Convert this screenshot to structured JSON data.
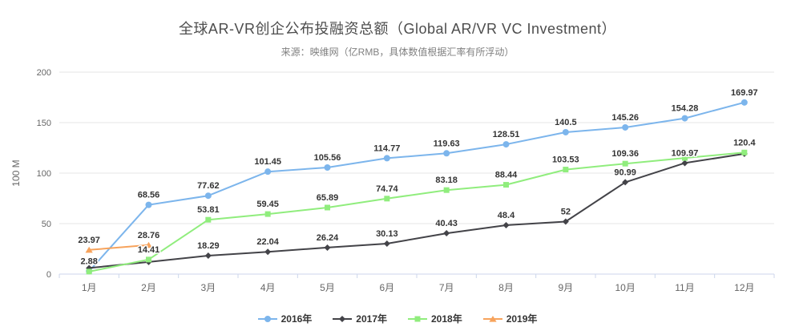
{
  "chart_data": {
    "type": "line",
    "title": "全球AR-VR创企公布投融资总额（Global AR/VR VC Investment）",
    "subtitle": "来源：映维网（亿RMB，具体数值根据汇率有所浮动）",
    "categories": [
      "1月",
      "2月",
      "3月",
      "4月",
      "5月",
      "6月",
      "7月",
      "8月",
      "9月",
      "10月",
      "11月",
      "12月"
    ],
    "xlabel": "",
    "ylabel": "100 M",
    "ylim": [
      0,
      200
    ],
    "yticks": [
      0,
      50,
      100,
      150,
      200
    ],
    "grid": true,
    "legend_position": "bottom",
    "series": [
      {
        "name": "2016年",
        "color": "#7cb5ec",
        "marker": "circle",
        "values": [
          2.88,
          68.56,
          77.62,
          101.45,
          105.56,
          114.77,
          119.63,
          128.51,
          140.5,
          145.26,
          154.28,
          169.97
        ],
        "labels": [
          "2.88",
          "68.56",
          "77.62",
          "101.45",
          "105.56",
          "114.77",
          "119.63",
          "128.51",
          "140.5",
          "145.26",
          "154.28",
          "169.97"
        ]
      },
      {
        "name": "2017年",
        "color": "#434348",
        "marker": "diamond",
        "values": [
          6,
          12,
          18.29,
          22.04,
          26.24,
          30.13,
          40.43,
          48.4,
          52,
          90.99,
          109.97,
          119.1
        ],
        "labels": [
          null,
          null,
          "18.29",
          "22.04",
          "26.24",
          "30.13",
          "40.43",
          "48.4",
          "52",
          "90.99",
          "109.97",
          null
        ]
      },
      {
        "name": "2018年",
        "color": "#90ed7d",
        "marker": "square",
        "values": [
          2.5,
          14.41,
          53.81,
          59.45,
          65.89,
          74.74,
          83.18,
          88.44,
          103.53,
          109.36,
          115,
          120.4
        ],
        "labels": [
          null,
          "14.41",
          "53.81",
          "59.45",
          "65.89",
          "74.74",
          "83.18",
          "88.44",
          "103.53",
          "109.36",
          null,
          "120.4"
        ]
      },
      {
        "name": "2019年",
        "color": "#f7a35c",
        "marker": "triangle",
        "values": [
          23.97,
          28.76
        ],
        "labels": [
          "23.97",
          "28.76"
        ]
      }
    ]
  }
}
